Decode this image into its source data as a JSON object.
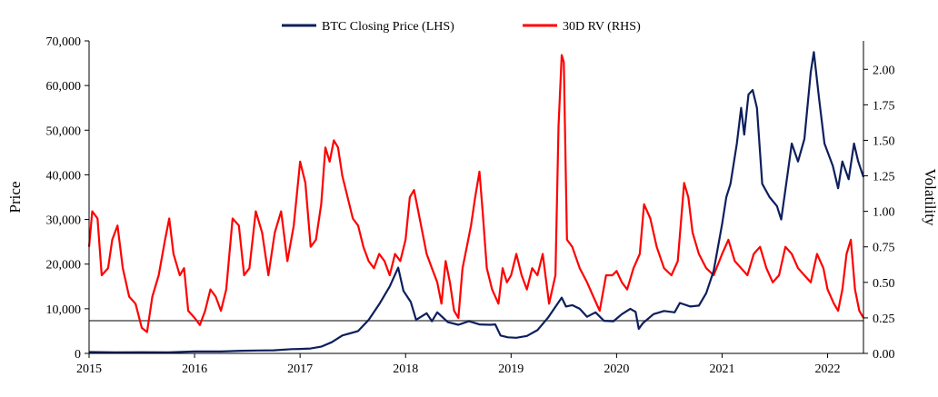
{
  "chart_data": {
    "type": "line",
    "title": "",
    "legend": {
      "position": "top-center",
      "entries": [
        {
          "label": "BTC Closing Price (LHS)",
          "color": "#0d1f5c"
        },
        {
          "label": "30D RV (RHS)",
          "color": "#ff0000"
        }
      ]
    },
    "xlabel": "",
    "x_ticks": [
      "2015",
      "2016",
      "2017",
      "2018",
      "2019",
      "2020",
      "2021",
      "2022"
    ],
    "xlim": [
      2015.0,
      2022.34
    ],
    "y_left": {
      "label": "Price",
      "ylim": [
        0,
        70000
      ],
      "ticks": [
        0,
        10000,
        20000,
        30000,
        40000,
        50000,
        60000,
        70000
      ],
      "tick_labels": [
        "0",
        "10,000",
        "20,000",
        "30,000",
        "40,000",
        "50,000",
        "60,000",
        "70,000"
      ]
    },
    "y_right": {
      "label": "Volatility",
      "ylim": [
        0,
        2.2
      ],
      "ticks": [
        0,
        0.25,
        0.5,
        0.75,
        1.0,
        1.25,
        1.5,
        1.75,
        2.0
      ],
      "tick_labels": [
        "0.00",
        "0.25",
        "0.50",
        "0.75",
        "1.00",
        "1.25",
        "1.50",
        "1.75",
        "2.00"
      ]
    },
    "reference_line": {
      "axis": "right",
      "value": 0.23,
      "color": "#808080"
    },
    "series": [
      {
        "name": "BTC Closing Price (LHS)",
        "axis": "left",
        "color": "#0d1f5c",
        "points": [
          [
            2015.0,
            300
          ],
          [
            2015.25,
            250
          ],
          [
            2015.5,
            260
          ],
          [
            2015.75,
            250
          ],
          [
            2016.0,
            430
          ],
          [
            2016.25,
            420
          ],
          [
            2016.45,
            600
          ],
          [
            2016.6,
            650
          ],
          [
            2016.75,
            700
          ],
          [
            2016.92,
            950
          ],
          [
            2017.0,
            1000
          ],
          [
            2017.1,
            1100
          ],
          [
            2017.2,
            1500
          ],
          [
            2017.3,
            2500
          ],
          [
            2017.4,
            4000
          ],
          [
            2017.55,
            5000
          ],
          [
            2017.65,
            7500
          ],
          [
            2017.75,
            11000
          ],
          [
            2017.85,
            15000
          ],
          [
            2017.93,
            19200
          ],
          [
            2017.98,
            14000
          ],
          [
            2018.05,
            11500
          ],
          [
            2018.1,
            7500
          ],
          [
            2018.2,
            9000
          ],
          [
            2018.25,
            7200
          ],
          [
            2018.3,
            9200
          ],
          [
            2018.4,
            7000
          ],
          [
            2018.5,
            6400
          ],
          [
            2018.6,
            7200
          ],
          [
            2018.7,
            6500
          ],
          [
            2018.8,
            6400
          ],
          [
            2018.85,
            6500
          ],
          [
            2018.9,
            4000
          ],
          [
            2018.97,
            3600
          ],
          [
            2019.05,
            3500
          ],
          [
            2019.15,
            3900
          ],
          [
            2019.25,
            5200
          ],
          [
            2019.35,
            8000
          ],
          [
            2019.48,
            12500
          ],
          [
            2019.52,
            10500
          ],
          [
            2019.58,
            10800
          ],
          [
            2019.65,
            10000
          ],
          [
            2019.72,
            8200
          ],
          [
            2019.8,
            9200
          ],
          [
            2019.88,
            7300
          ],
          [
            2019.97,
            7200
          ],
          [
            2020.05,
            8800
          ],
          [
            2020.13,
            10000
          ],
          [
            2020.18,
            9300
          ],
          [
            2020.21,
            5500
          ],
          [
            2020.25,
            6800
          ],
          [
            2020.35,
            8800
          ],
          [
            2020.45,
            9500
          ],
          [
            2020.55,
            9200
          ],
          [
            2020.6,
            11300
          ],
          [
            2020.7,
            10500
          ],
          [
            2020.78,
            10700
          ],
          [
            2020.85,
            13500
          ],
          [
            2020.92,
            18500
          ],
          [
            2021.0,
            29000
          ],
          [
            2021.04,
            35000
          ],
          [
            2021.08,
            38000
          ],
          [
            2021.14,
            47000
          ],
          [
            2021.18,
            55000
          ],
          [
            2021.21,
            49000
          ],
          [
            2021.25,
            58000
          ],
          [
            2021.29,
            59000
          ],
          [
            2021.33,
            55000
          ],
          [
            2021.38,
            38000
          ],
          [
            2021.45,
            35000
          ],
          [
            2021.52,
            33000
          ],
          [
            2021.56,
            30000
          ],
          [
            2021.62,
            40000
          ],
          [
            2021.66,
            47000
          ],
          [
            2021.72,
            43000
          ],
          [
            2021.78,
            48000
          ],
          [
            2021.84,
            63000
          ],
          [
            2021.87,
            67500
          ],
          [
            2021.92,
            57000
          ],
          [
            2021.97,
            47000
          ],
          [
            2022.05,
            42000
          ],
          [
            2022.1,
            37000
          ],
          [
            2022.14,
            43000
          ],
          [
            2022.2,
            39000
          ],
          [
            2022.25,
            47000
          ],
          [
            2022.29,
            43000
          ],
          [
            2022.34,
            39500
          ]
        ]
      },
      {
        "name": "30D RV (RHS)",
        "axis": "right",
        "color": "#ff0000",
        "points": [
          [
            2015.0,
            0.75
          ],
          [
            2015.03,
            1.0
          ],
          [
            2015.08,
            0.95
          ],
          [
            2015.12,
            0.55
          ],
          [
            2015.18,
            0.6
          ],
          [
            2015.22,
            0.8
          ],
          [
            2015.27,
            0.9
          ],
          [
            2015.32,
            0.6
          ],
          [
            2015.38,
            0.4
          ],
          [
            2015.44,
            0.35
          ],
          [
            2015.5,
            0.18
          ],
          [
            2015.55,
            0.15
          ],
          [
            2015.6,
            0.4
          ],
          [
            2015.66,
            0.55
          ],
          [
            2015.72,
            0.8
          ],
          [
            2015.76,
            0.95
          ],
          [
            2015.8,
            0.7
          ],
          [
            2015.86,
            0.55
          ],
          [
            2015.9,
            0.6
          ],
          [
            2015.94,
            0.3
          ],
          [
            2016.0,
            0.25
          ],
          [
            2016.05,
            0.2
          ],
          [
            2016.1,
            0.3
          ],
          [
            2016.15,
            0.45
          ],
          [
            2016.2,
            0.4
          ],
          [
            2016.25,
            0.3
          ],
          [
            2016.3,
            0.45
          ],
          [
            2016.36,
            0.95
          ],
          [
            2016.42,
            0.9
          ],
          [
            2016.47,
            0.55
          ],
          [
            2016.52,
            0.6
          ],
          [
            2016.58,
            1.0
          ],
          [
            2016.64,
            0.85
          ],
          [
            2016.7,
            0.55
          ],
          [
            2016.76,
            0.85
          ],
          [
            2016.82,
            1.0
          ],
          [
            2016.88,
            0.65
          ],
          [
            2016.94,
            0.9
          ],
          [
            2017.0,
            1.35
          ],
          [
            2017.05,
            1.2
          ],
          [
            2017.1,
            0.75
          ],
          [
            2017.15,
            0.8
          ],
          [
            2017.2,
            1.05
          ],
          [
            2017.24,
            1.45
          ],
          [
            2017.28,
            1.35
          ],
          [
            2017.32,
            1.5
          ],
          [
            2017.36,
            1.45
          ],
          [
            2017.4,
            1.25
          ],
          [
            2017.45,
            1.1
          ],
          [
            2017.5,
            0.95
          ],
          [
            2017.55,
            0.9
          ],
          [
            2017.6,
            0.75
          ],
          [
            2017.65,
            0.65
          ],
          [
            2017.7,
            0.6
          ],
          [
            2017.75,
            0.7
          ],
          [
            2017.8,
            0.65
          ],
          [
            2017.85,
            0.55
          ],
          [
            2017.9,
            0.7
          ],
          [
            2017.95,
            0.65
          ],
          [
            2018.0,
            0.8
          ],
          [
            2018.04,
            1.1
          ],
          [
            2018.08,
            1.15
          ],
          [
            2018.12,
            1.0
          ],
          [
            2018.16,
            0.85
          ],
          [
            2018.2,
            0.7
          ],
          [
            2018.25,
            0.6
          ],
          [
            2018.3,
            0.5
          ],
          [
            2018.34,
            0.35
          ],
          [
            2018.38,
            0.65
          ],
          [
            2018.42,
            0.5
          ],
          [
            2018.46,
            0.3
          ],
          [
            2018.5,
            0.25
          ],
          [
            2018.54,
            0.6
          ],
          [
            2018.58,
            0.75
          ],
          [
            2018.62,
            0.9
          ],
          [
            2018.66,
            1.1
          ],
          [
            2018.7,
            1.28
          ],
          [
            2018.73,
            1.0
          ],
          [
            2018.77,
            0.6
          ],
          [
            2018.82,
            0.45
          ],
          [
            2018.88,
            0.35
          ],
          [
            2018.92,
            0.6
          ],
          [
            2018.96,
            0.5
          ],
          [
            2019.0,
            0.55
          ],
          [
            2019.05,
            0.7
          ],
          [
            2019.1,
            0.55
          ],
          [
            2019.15,
            0.45
          ],
          [
            2019.2,
            0.6
          ],
          [
            2019.25,
            0.55
          ],
          [
            2019.3,
            0.7
          ],
          [
            2019.36,
            0.35
          ],
          [
            2019.42,
            0.55
          ],
          [
            2019.45,
            1.6
          ],
          [
            2019.48,
            2.1
          ],
          [
            2019.5,
            2.05
          ],
          [
            2019.53,
            0.8
          ],
          [
            2019.58,
            0.75
          ],
          [
            2019.65,
            0.6
          ],
          [
            2019.72,
            0.5
          ],
          [
            2019.78,
            0.4
          ],
          [
            2019.84,
            0.3
          ],
          [
            2019.9,
            0.55
          ],
          [
            2019.96,
            0.55
          ],
          [
            2020.0,
            0.58
          ],
          [
            2020.05,
            0.5
          ],
          [
            2020.1,
            0.45
          ],
          [
            2020.16,
            0.6
          ],
          [
            2020.22,
            0.7
          ],
          [
            2020.26,
            1.05
          ],
          [
            2020.32,
            0.95
          ],
          [
            2020.38,
            0.75
          ],
          [
            2020.45,
            0.6
          ],
          [
            2020.52,
            0.55
          ],
          [
            2020.58,
            0.65
          ],
          [
            2020.64,
            1.2
          ],
          [
            2020.68,
            1.1
          ],
          [
            2020.72,
            0.85
          ],
          [
            2020.78,
            0.7
          ],
          [
            2020.85,
            0.6
          ],
          [
            2020.92,
            0.55
          ],
          [
            2021.0,
            0.7
          ],
          [
            2021.06,
            0.8
          ],
          [
            2021.12,
            0.65
          ],
          [
            2021.18,
            0.6
          ],
          [
            2021.24,
            0.55
          ],
          [
            2021.3,
            0.7
          ],
          [
            2021.36,
            0.75
          ],
          [
            2021.42,
            0.6
          ],
          [
            2021.48,
            0.5
          ],
          [
            2021.54,
            0.55
          ],
          [
            2021.6,
            0.75
          ],
          [
            2021.66,
            0.7
          ],
          [
            2021.72,
            0.6
          ],
          [
            2021.78,
            0.55
          ],
          [
            2021.84,
            0.5
          ],
          [
            2021.9,
            0.7
          ],
          [
            2021.96,
            0.6
          ],
          [
            2022.0,
            0.45
          ],
          [
            2022.06,
            0.35
          ],
          [
            2022.1,
            0.3
          ],
          [
            2022.14,
            0.45
          ],
          [
            2022.18,
            0.7
          ],
          [
            2022.22,
            0.8
          ],
          [
            2022.26,
            0.45
          ],
          [
            2022.3,
            0.3
          ],
          [
            2022.34,
            0.25
          ]
        ]
      }
    ]
  }
}
